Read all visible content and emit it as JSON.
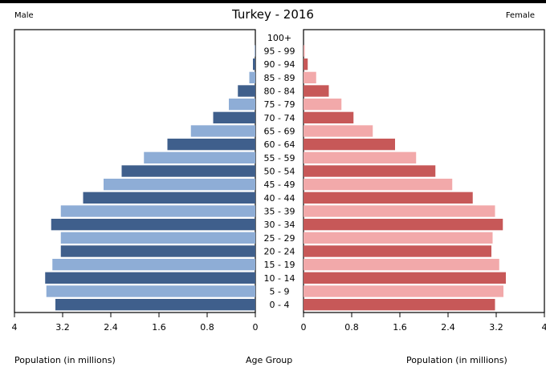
{
  "header": {
    "male_label": "Male",
    "female_label": "Female"
  },
  "chart_data": {
    "type": "bar",
    "title": "Turkey - 2016",
    "categories": [
      "0 - 4",
      "5 - 9",
      "10 - 14",
      "15 - 19",
      "20 - 24",
      "25 - 29",
      "30 - 34",
      "35 - 39",
      "40 - 44",
      "45 - 49",
      "50 - 54",
      "55 - 59",
      "60 - 64",
      "65 - 69",
      "70 - 74",
      "75 - 79",
      "80 - 84",
      "85 - 89",
      "90 - 94",
      "95 - 99",
      "100+"
    ],
    "series": [
      {
        "name": "Male",
        "values": [
          3.32,
          3.47,
          3.49,
          3.37,
          3.23,
          3.23,
          3.39,
          3.23,
          2.86,
          2.52,
          2.22,
          1.85,
          1.46,
          1.07,
          0.7,
          0.44,
          0.29,
          0.1,
          0.04,
          0.01,
          0.0
        ],
        "colors": {
          "dark": "#3f5f8c",
          "light": "#8eadd6"
        }
      },
      {
        "name": "Female",
        "values": [
          3.18,
          3.32,
          3.36,
          3.25,
          3.12,
          3.14,
          3.31,
          3.18,
          2.81,
          2.47,
          2.19,
          1.87,
          1.52,
          1.15,
          0.83,
          0.63,
          0.42,
          0.21,
          0.07,
          0.02,
          0.0
        ],
        "colors": {
          "dark": "#c75858",
          "light": "#f2a9aa"
        }
      }
    ],
    "xlim": [
      0,
      4
    ],
    "left_ticks": [
      "4",
      "3.2",
      "2.4",
      "1.6",
      "0.8",
      "0"
    ],
    "right_ticks": [
      "0",
      "0.8",
      "1.6",
      "2.4",
      "3.2",
      "4"
    ],
    "xlabel_left": "Population (in millions)",
    "xlabel_center": "Age Group",
    "xlabel_right": "Population (in millions)",
    "grid": false
  }
}
